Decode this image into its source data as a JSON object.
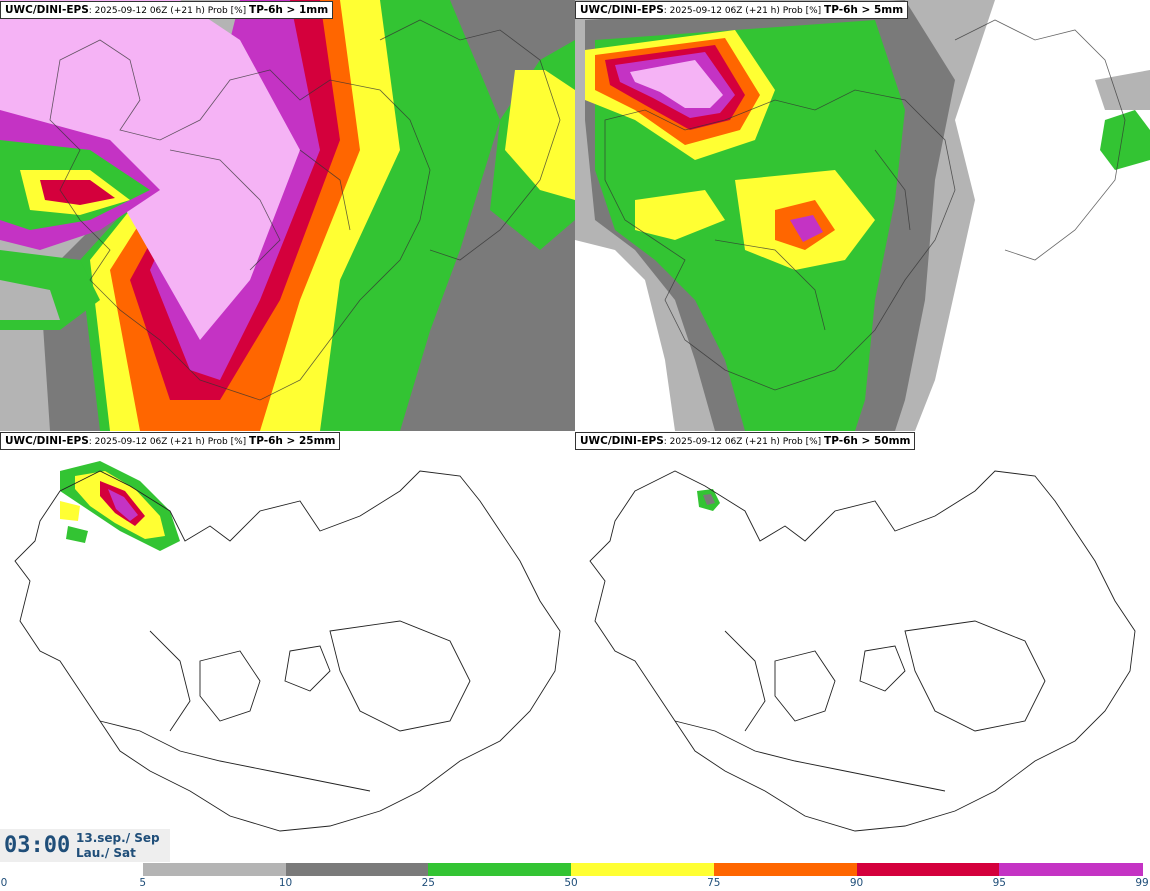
{
  "panels": [
    {
      "model": "UWC/DINI-EPS",
      "meta": ": 2025-09-12 06Z (+21 h) Prob [%] ",
      "variable": "TP-6h > 1mm",
      "precip_level": "very-high"
    },
    {
      "model": "UWC/DINI-EPS",
      "meta": ": 2025-09-12 06Z (+21 h) Prob [%] ",
      "variable": "TP-6h > 5mm",
      "precip_level": "high"
    },
    {
      "model": "UWC/DINI-EPS",
      "meta": ": 2025-09-12 06Z (+21 h) Prob [%] ",
      "variable": "TP-6h > 25mm",
      "precip_level": "low"
    },
    {
      "model": "UWC/DINI-EPS",
      "meta": ": 2025-09-12 06Z (+21 h) Prob [%] ",
      "variable": "TP-6h > 50mm",
      "precip_level": "minimal"
    }
  ],
  "time": {
    "clock": "03:00",
    "date": "13.sep./ Sep",
    "day": "Lau./ Sat"
  },
  "colorbar": {
    "ticks": [
      "0",
      "5",
      "10",
      "25",
      "50",
      "75",
      "90",
      "95",
      "99"
    ],
    "colors": [
      "#ffffff",
      "#b4b4b4",
      "#7a7a7a",
      "#33c433",
      "#ffff33",
      "#ff6600",
      "#d4003c",
      "#c433c4",
      "#f5b3f5"
    ]
  }
}
